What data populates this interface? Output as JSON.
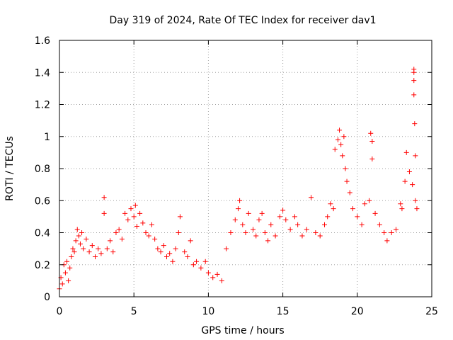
{
  "chart_data": {
    "type": "scatter",
    "title": "Day 319 of 2024, Rate Of TEC Index for receiver dav1",
    "xlabel": "GPS time / hours",
    "ylabel": "ROTI / TECUs",
    "xlim": [
      0,
      25
    ],
    "ylim": [
      0,
      1.6
    ],
    "xticks": [
      0,
      5,
      10,
      15,
      20,
      25
    ],
    "xtick_labels": [
      "0",
      "5",
      "10",
      "15",
      "20",
      "25"
    ],
    "yticks": [
      0,
      0.2,
      0.4,
      0.6,
      0.8,
      1,
      1.2,
      1.4,
      1.6
    ],
    "ytick_labels": [
      "0",
      "0.2",
      "0.4",
      "0.6",
      "0.8",
      "1",
      "1.2",
      "1.4",
      "1.6"
    ],
    "grid": true,
    "marker": "+",
    "color": "#ff0000",
    "series": [
      {
        "points": [
          [
            0.0,
            0.05
          ],
          [
            0.1,
            0.12
          ],
          [
            0.2,
            0.08
          ],
          [
            0.3,
            0.2
          ],
          [
            0.4,
            0.15
          ],
          [
            0.5,
            0.22
          ],
          [
            0.6,
            0.1
          ],
          [
            0.7,
            0.18
          ],
          [
            0.8,
            0.25
          ],
          [
            0.9,
            0.3
          ],
          [
            1.0,
            0.28
          ],
          [
            1.1,
            0.35
          ],
          [
            1.2,
            0.42
          ],
          [
            1.3,
            0.38
          ],
          [
            1.4,
            0.33
          ],
          [
            1.5,
            0.4
          ],
          [
            1.6,
            0.3
          ],
          [
            1.8,
            0.36
          ],
          [
            2.0,
            0.28
          ],
          [
            2.2,
            0.32
          ],
          [
            2.4,
            0.25
          ],
          [
            2.6,
            0.3
          ],
          [
            2.8,
            0.27
          ],
          [
            3.0,
            0.62
          ],
          [
            3.0,
            0.52
          ],
          [
            3.2,
            0.3
          ],
          [
            3.4,
            0.35
          ],
          [
            3.6,
            0.28
          ],
          [
            3.8,
            0.4
          ],
          [
            4.0,
            0.42
          ],
          [
            4.2,
            0.36
          ],
          [
            4.4,
            0.52
          ],
          [
            4.6,
            0.48
          ],
          [
            4.8,
            0.55
          ],
          [
            5.0,
            0.5
          ],
          [
            5.1,
            0.57
          ],
          [
            5.2,
            0.44
          ],
          [
            5.4,
            0.52
          ],
          [
            5.6,
            0.46
          ],
          [
            5.8,
            0.4
          ],
          [
            6.0,
            0.38
          ],
          [
            6.2,
            0.45
          ],
          [
            6.4,
            0.36
          ],
          [
            6.6,
            0.3
          ],
          [
            6.8,
            0.28
          ],
          [
            7.0,
            0.32
          ],
          [
            7.2,
            0.25
          ],
          [
            7.4,
            0.27
          ],
          [
            7.6,
            0.22
          ],
          [
            7.8,
            0.3
          ],
          [
            8.0,
            0.4
          ],
          [
            8.1,
            0.5
          ],
          [
            8.4,
            0.28
          ],
          [
            8.6,
            0.25
          ],
          [
            8.8,
            0.35
          ],
          [
            9.0,
            0.2
          ],
          [
            9.2,
            0.22
          ],
          [
            9.5,
            0.18
          ],
          [
            9.8,
            0.22
          ],
          [
            10.0,
            0.15
          ],
          [
            10.3,
            0.12
          ],
          [
            10.6,
            0.14
          ],
          [
            10.9,
            0.1
          ],
          [
            11.2,
            0.3
          ],
          [
            11.5,
            0.4
          ],
          [
            11.8,
            0.48
          ],
          [
            12.0,
            0.55
          ],
          [
            12.1,
            0.6
          ],
          [
            12.3,
            0.45
          ],
          [
            12.5,
            0.4
          ],
          [
            12.7,
            0.52
          ],
          [
            13.0,
            0.42
          ],
          [
            13.2,
            0.38
          ],
          [
            13.4,
            0.48
          ],
          [
            13.6,
            0.52
          ],
          [
            13.8,
            0.4
          ],
          [
            14.0,
            0.35
          ],
          [
            14.2,
            0.45
          ],
          [
            14.5,
            0.38
          ],
          [
            14.8,
            0.5
          ],
          [
            15.0,
            0.54
          ],
          [
            15.2,
            0.48
          ],
          [
            15.5,
            0.42
          ],
          [
            15.8,
            0.5
          ],
          [
            16.0,
            0.45
          ],
          [
            16.3,
            0.38
          ],
          [
            16.6,
            0.42
          ],
          [
            16.9,
            0.62
          ],
          [
            17.2,
            0.4
          ],
          [
            17.5,
            0.38
          ],
          [
            17.8,
            0.45
          ],
          [
            18.0,
            0.5
          ],
          [
            18.2,
            0.58
          ],
          [
            18.4,
            0.55
          ],
          [
            18.5,
            0.92
          ],
          [
            18.7,
            0.98
          ],
          [
            18.8,
            1.04
          ],
          [
            18.9,
            0.95
          ],
          [
            19.0,
            0.88
          ],
          [
            19.1,
            1.0
          ],
          [
            19.2,
            0.8
          ],
          [
            19.3,
            0.72
          ],
          [
            19.5,
            0.65
          ],
          [
            19.7,
            0.55
          ],
          [
            20.0,
            0.5
          ],
          [
            20.3,
            0.45
          ],
          [
            20.5,
            0.58
          ],
          [
            20.8,
            0.6
          ],
          [
            20.9,
            1.02
          ],
          [
            21.0,
            0.97
          ],
          [
            21.0,
            0.86
          ],
          [
            21.2,
            0.52
          ],
          [
            21.5,
            0.45
          ],
          [
            21.8,
            0.4
          ],
          [
            22.0,
            0.35
          ],
          [
            22.3,
            0.4
          ],
          [
            22.6,
            0.42
          ],
          [
            22.9,
            0.58
          ],
          [
            23.0,
            0.55
          ],
          [
            23.2,
            0.72
          ],
          [
            23.3,
            0.9
          ],
          [
            23.5,
            0.78
          ],
          [
            23.7,
            0.7
          ],
          [
            23.8,
            1.42
          ],
          [
            23.8,
            1.4
          ],
          [
            23.8,
            1.35
          ],
          [
            23.8,
            1.26
          ],
          [
            23.85,
            1.08
          ],
          [
            23.9,
            0.88
          ],
          [
            23.9,
            0.6
          ],
          [
            24.0,
            0.55
          ]
        ]
      }
    ]
  }
}
